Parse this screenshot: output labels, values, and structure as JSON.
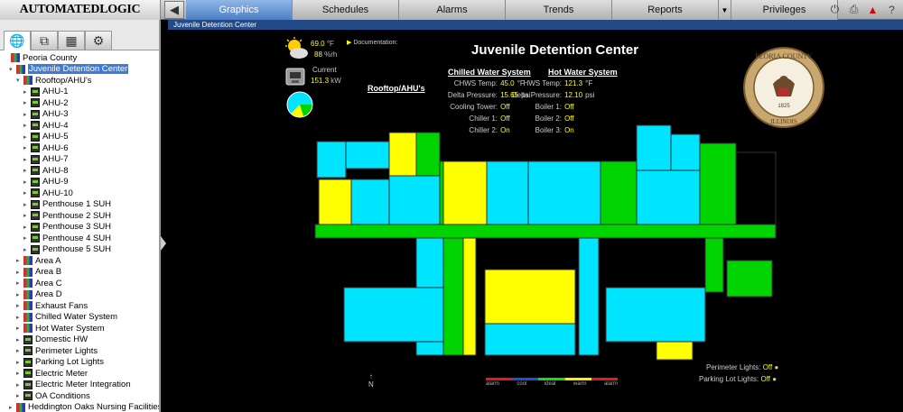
{
  "app": {
    "logo": "AUTOMATEDLOGIC",
    "back_icon": "back-arrow-icon"
  },
  "nav": {
    "tabs": [
      "Graphics",
      "Schedules",
      "Alarms",
      "Trends",
      "Reports",
      "Privileges"
    ],
    "active": "Graphics"
  },
  "tools": [
    "power-icon",
    "print-icon",
    "alarm-warning-icon",
    "help-icon"
  ],
  "left_tabs": [
    "geographic-tree-icon",
    "network-tree-icon",
    "groups-icon",
    "config-icon"
  ],
  "tree": {
    "root": "Peoria County",
    "selected": "Juvenile Detention Center",
    "nodes": [
      {
        "label": "Peoria County",
        "level": 0,
        "icon": "bld",
        "arrow": ""
      },
      {
        "label": "Juvenile Detention Center",
        "level": 1,
        "icon": "bld",
        "arrow": "▾",
        "sel": true
      },
      {
        "label": "Rooftop/AHU's",
        "level": 2,
        "icon": "bld",
        "arrow": "▾"
      },
      {
        "label": "AHU-1",
        "level": 3,
        "icon": "eq",
        "arrow": "▸"
      },
      {
        "label": "AHU-2",
        "level": 3,
        "icon": "eq",
        "arrow": "▸"
      },
      {
        "label": "AHU-3",
        "level": 3,
        "icon": "eq",
        "arrow": "▸"
      },
      {
        "label": "AHU-4",
        "level": 3,
        "icon": "eq",
        "arrow": "▸"
      },
      {
        "label": "AHU-5",
        "level": 3,
        "icon": "eq",
        "arrow": "▸"
      },
      {
        "label": "AHU-6",
        "level": 3,
        "icon": "eq",
        "arrow": "▸"
      },
      {
        "label": "AHU-7",
        "level": 3,
        "icon": "eq",
        "arrow": "▸"
      },
      {
        "label": "AHU-8",
        "level": 3,
        "icon": "eq",
        "arrow": "▸"
      },
      {
        "label": "AHU-9",
        "level": 3,
        "icon": "eq",
        "arrow": "▸"
      },
      {
        "label": "AHU-10",
        "level": 3,
        "icon": "eq",
        "arrow": "▸"
      },
      {
        "label": "Penthouse 1 SUH",
        "level": 3,
        "icon": "eq",
        "arrow": "▸"
      },
      {
        "label": "Penthouse 2 SUH",
        "level": 3,
        "icon": "eq",
        "arrow": "▸"
      },
      {
        "label": "Penthouse 3 SUH",
        "level": 3,
        "icon": "eq",
        "arrow": "▸"
      },
      {
        "label": "Penthouse 4 SUH",
        "level": 3,
        "icon": "eq",
        "arrow": "▸"
      },
      {
        "label": "Penthouse 5 SUH",
        "level": 3,
        "icon": "eq",
        "arrow": "▸"
      },
      {
        "label": "Area A",
        "level": 2,
        "icon": "bld",
        "arrow": "▸"
      },
      {
        "label": "Area B",
        "level": 2,
        "icon": "bld",
        "arrow": "▸"
      },
      {
        "label": "Area C",
        "level": 2,
        "icon": "bld",
        "arrow": "▸"
      },
      {
        "label": "Area D",
        "level": 2,
        "icon": "bld",
        "arrow": "▸"
      },
      {
        "label": "Exhaust Fans",
        "level": 2,
        "icon": "bld",
        "arrow": "▸"
      },
      {
        "label": "Chilled Water System",
        "level": 2,
        "icon": "bld",
        "arrow": "▸"
      },
      {
        "label": "Hot Water System",
        "level": 2,
        "icon": "bld",
        "arrow": "▸"
      },
      {
        "label": "Domestic HW",
        "level": 2,
        "icon": "eq",
        "arrow": "▸"
      },
      {
        "label": "Perimeter Lights",
        "level": 2,
        "icon": "eq",
        "arrow": "▸"
      },
      {
        "label": "Parking Lot Lights",
        "level": 2,
        "icon": "eq",
        "arrow": "▸"
      },
      {
        "label": "Electric Meter",
        "level": 2,
        "icon": "eq",
        "arrow": "▸"
      },
      {
        "label": "Electric Meter Integration",
        "level": 2,
        "icon": "eq",
        "arrow": "▸"
      },
      {
        "label": "OA Conditions",
        "level": 2,
        "icon": "eq",
        "arrow": "▸"
      },
      {
        "label": "Heddington Oaks Nursing Facilities",
        "level": 1,
        "icon": "bld",
        "arrow": "▸"
      }
    ]
  },
  "breadcrumb": "Juvenile Detention Center",
  "graphic": {
    "title": "Juvenile Detention Center",
    "weather": {
      "temp": "69.0",
      "temp_unit": "°F",
      "rh": "88",
      "rh_unit": "%rh"
    },
    "meter": {
      "label": "Current",
      "value": "151.3",
      "unit": "kW"
    },
    "documentation": "Documentation:",
    "rooftop_link": "Rooftop/AHU's",
    "chilled": {
      "title": "Chilled Water System",
      "rows": [
        {
          "label": "CHWS Temp:",
          "value": "45.0",
          "unit": "°F"
        },
        {
          "label": "Delta Pressure:",
          "value": "15.65",
          "unit": "psi"
        },
        {
          "label": "Cooling Tower:",
          "value": "Off",
          "unit": ""
        },
        {
          "label": "Chiller 1:",
          "value": "Off",
          "unit": ""
        },
        {
          "label": "Chiller 2:",
          "value": "On",
          "unit": ""
        }
      ]
    },
    "hot": {
      "title": "Hot Water System",
      "rows": [
        {
          "label": "HWS Temp:",
          "value": "121.3",
          "unit": "°F"
        },
        {
          "label": "Delta Pressure:",
          "value": "12.10",
          "unit": "psi"
        },
        {
          "label": "Boiler 1:",
          "value": "Off",
          "unit": ""
        },
        {
          "label": "Boiler 2:",
          "value": "Off",
          "unit": ""
        },
        {
          "label": "Boiler 3:",
          "value": "On",
          "unit": ""
        }
      ]
    },
    "seal": {
      "top": "PEORIA COUNTY",
      "bottom": "ILLINOIS",
      "year": "1825"
    },
    "lights": [
      {
        "label": "Perimeter Lights:",
        "value": "Off"
      },
      {
        "label": "Parking Lot Lights:",
        "value": "Off"
      }
    ],
    "north": "N",
    "legend": {
      "labels": [
        "alarm",
        "cool",
        "ideal",
        "warm",
        "alarm"
      ],
      "colors": [
        "#e31b1b",
        "#1f4ee0",
        "#1bd81b",
        "#ffee00",
        "#e31b1b"
      ]
    },
    "colors": {
      "cool": "#00e5ff",
      "ideal": "#00d400",
      "warm": "#ffff00"
    }
  }
}
